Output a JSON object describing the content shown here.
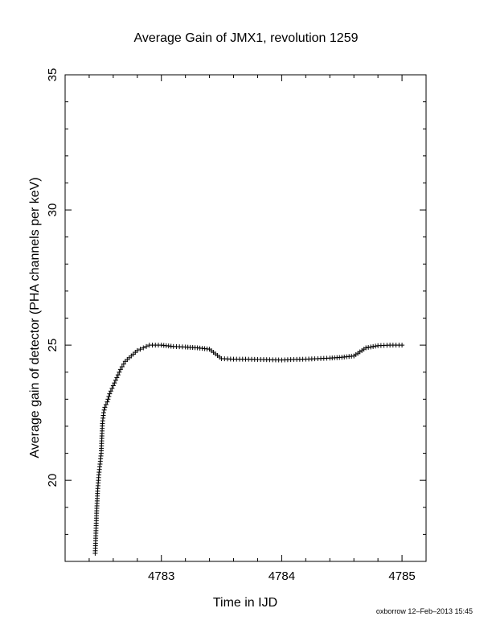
{
  "chart_data": {
    "type": "scatter",
    "title": "Average Gain of JMX1, revolution 1259",
    "xlabel": "Time in IJD",
    "ylabel": "Average gain of detector (PHA channels per keV)",
    "xlim": [
      4782.2,
      4785.2
    ],
    "ylim": [
      17,
      35
    ],
    "xticks": [
      4783,
      4784,
      4785
    ],
    "yticks": [
      20,
      25,
      30,
      35
    ],
    "marker": "plus",
    "grid": false,
    "legend": "none",
    "series": [
      {
        "x": [
          4782.45,
          4782.46,
          4782.47,
          4782.48,
          4782.49,
          4782.5,
          4782.51,
          4782.52,
          4782.53,
          4782.55,
          4782.57,
          4782.6,
          4782.63,
          4782.66,
          4782.7,
          4782.75,
          4782.8,
          4782.85,
          4782.9,
          4782.95,
          4783.0,
          4783.1,
          4783.2,
          4783.3,
          4783.4,
          4783.5,
          4783.6,
          4783.7,
          4783.8,
          4783.9,
          4784.0,
          4784.1,
          4784.2,
          4784.3,
          4784.4,
          4784.5,
          4784.6,
          4784.7,
          4784.8,
          4784.9,
          4785.0
        ],
        "y": [
          17.3,
          18.6,
          19.6,
          20.2,
          20.6,
          21.0,
          22.1,
          22.5,
          22.7,
          22.9,
          23.2,
          23.5,
          23.8,
          24.1,
          24.4,
          24.6,
          24.8,
          24.9,
          25.0,
          25.0,
          25.0,
          24.95,
          24.93,
          24.9,
          24.85,
          24.5,
          24.48,
          24.48,
          24.47,
          24.46,
          24.45,
          24.47,
          24.48,
          24.5,
          24.52,
          24.55,
          24.6,
          24.9,
          24.98,
          25.0,
          25.0
        ]
      }
    ]
  },
  "footer": "oxborrow 12–Feb–2013 15:45"
}
